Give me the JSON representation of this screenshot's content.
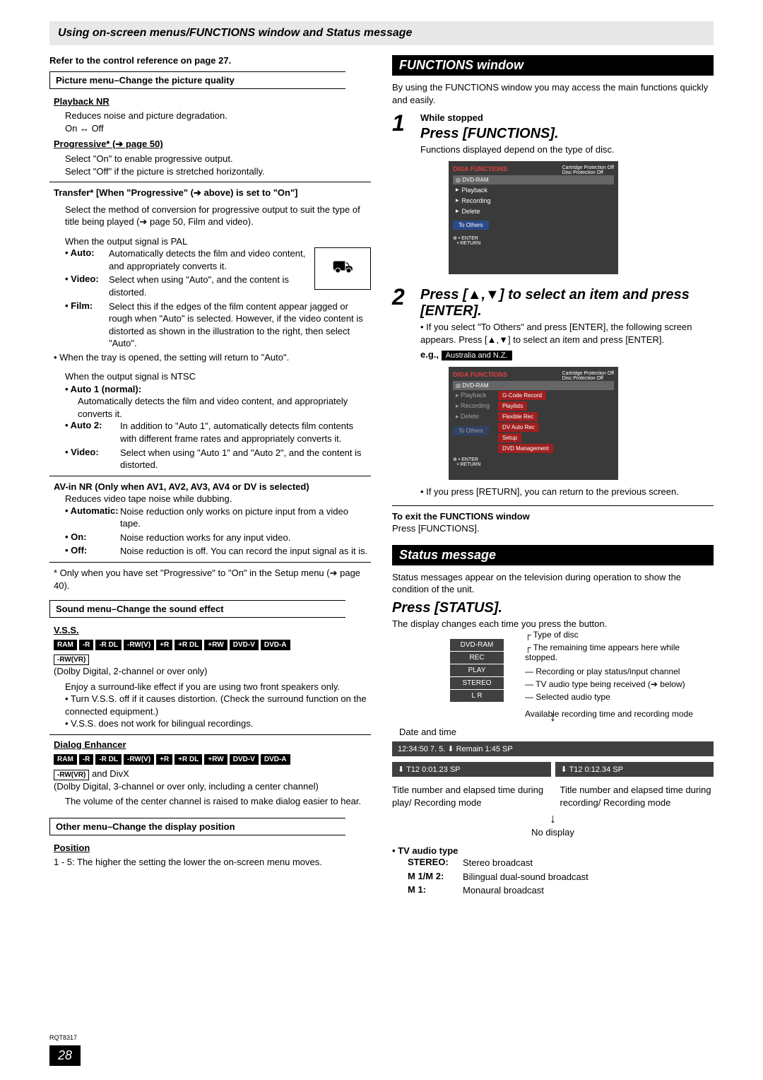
{
  "header": "Using on-screen menus/FUNCTIONS window and Status message",
  "ref_note": "Refer to the control reference on page 27.",
  "left": {
    "picture_bar": "Picture menu–Change the picture quality",
    "playback_nr": {
      "title": "Playback NR",
      "body": "Reduces noise and picture degradation.",
      "opts": "On ↔ Off"
    },
    "progressive": {
      "title": "Progressive* (➔ page 50)",
      "line1": "Select \"On\" to enable progressive output.",
      "line2": "Select \"Off\" if the picture is stretched horizontally."
    },
    "transfer": {
      "title": "Transfer* [When \"Progressive\" (➔ above) is set to \"On\"]",
      "body1": "Select the method of conversion for progressive output to suit the type of title being played (➔ page 50, Film and video).",
      "pal_title": "When the output signal is PAL",
      "auto": "Automatically detects the film and video content, and appropriately converts it.",
      "video": "Select when using \"Auto\", and the content is distorted.",
      "film": "Select this if the edges of the film content appear jagged or rough when \"Auto\" is selected. However, if the video content is distorted as shown in the illustration to the right, then select \"Auto\".",
      "tray": "• When the tray is opened, the setting will return to \"Auto\".",
      "ntsc_title": "When the output signal is NTSC",
      "auto1_label": "• Auto 1 (normal):",
      "auto1": "Automatically detects the film and video content, and appropriately converts it.",
      "auto2": "In addition to \"Auto 1\", automatically detects film contents with different frame rates and appropriately converts it.",
      "video2": "Select when using \"Auto 1\" and \"Auto 2\", and the content is distorted."
    },
    "avin": {
      "title": "AV-in NR (Only when AV1, AV2, AV3, AV4 or DV is selected)",
      "body": "Reduces video tape noise while dubbing.",
      "automatic": "Noise reduction only works on picture input from a video tape.",
      "on": "Noise reduction works for any input video.",
      "off": "Noise reduction is off. You can record the input signal as it is."
    },
    "footnote": "* Only when you have set \"Progressive\" to \"On\" in the Setup menu (➔ page 40).",
    "sound_bar": "Sound menu–Change the sound effect",
    "vss": {
      "title": "V.S.S.",
      "chips": [
        "RAM",
        "-R",
        "-R DL",
        "-RW(V)",
        "+R",
        "+R DL",
        "+RW",
        "DVD-V",
        "DVD-A"
      ],
      "chip_extra": "-RW(VR)",
      "note": "(Dolby Digital, 2-channel or over only)",
      "p1": "Enjoy a surround-like effect if you are using two front speakers only.",
      "b1": "• Turn V.S.S. off if it causes distortion. (Check the surround function on the connected equipment.)",
      "b2": "• V.S.S. does not work for bilingual recordings."
    },
    "dialog": {
      "title": "Dialog Enhancer",
      "chips": [
        "RAM",
        "-R",
        "-R DL",
        "-RW(V)",
        "+R",
        "+R DL",
        "+RW",
        "DVD-V",
        "DVD-A"
      ],
      "extra": "-RW(VR)  and DivX",
      "note": "(Dolby Digital, 3-channel or over only, including a center channel)",
      "p1": "The volume of the center channel is raised to make dialog easier to hear."
    },
    "other_bar": "Other menu–Change the display position",
    "position": {
      "title": "Position",
      "body": "1 - 5: The higher the setting the lower the on-screen menu moves."
    }
  },
  "right": {
    "func_bar": "FUNCTIONS window",
    "func_intro": "By using the FUNCTIONS window you may access the main functions quickly and easily.",
    "step1": {
      "while": "While stopped",
      "press": "Press [FUNCTIONS].",
      "sub": "Functions displayed depend on the type of disc.",
      "scr": {
        "brand": "DIGA  FUNCTIONS",
        "cartridge": "Cartridge Protection  Off",
        "discprot": "Disc Protection  Off",
        "dvdram": "◎ DVD-RAM",
        "items": [
          "Playback",
          "Recording",
          "Delete"
        ],
        "toothers": "To Others",
        "enter": "ENTER",
        "return": "RETURN"
      }
    },
    "step2": {
      "press": "Press [▲,▼] to select an item and press [ENTER].",
      "b1": "• If you select \"To Others\" and press [ENTER], the following screen appears. Press [▲,▼] to select an item and press [ENTER].",
      "eg": "e.g.,",
      "aus": "Australia and N.Z.",
      "scr": {
        "brand": "DIGA  FUNCTIONS",
        "cartridge": "Cartridge Protection  Off",
        "discprot": "Disc Protection  Off",
        "dvdram": "◎ DVD-RAM",
        "left_items": [
          "Playback",
          "Recording",
          "Delete"
        ],
        "toothers": "To Others",
        "right_items": [
          "G-Code Record",
          "Playlists",
          "Flexible Rec",
          "DV Auto Rec",
          "Setup",
          "DVD Management"
        ],
        "enter": "ENTER",
        "return": "RETURN"
      },
      "b2": "• If you press [RETURN], you can return to the previous screen.",
      "exit_title": "To exit the FUNCTIONS window",
      "exit_body": "Press [FUNCTIONS]."
    },
    "status_bar": "Status message",
    "status_intro": "Status messages appear on the television during operation to show the condition of the unit.",
    "press_status": "Press [STATUS].",
    "status_sub": "The display changes each time you press the button.",
    "diagram": {
      "boxes": [
        "DVD-RAM",
        "REC",
        "PLAY",
        "STEREO",
        "L R"
      ],
      "labels": {
        "type": "Type of disc",
        "remain": "The remaining time appears here while stopped.",
        "rec": "Recording or play status/input channel",
        "tv": "TV audio type being received (➔ below)",
        "audio": "Selected audio type",
        "avail": "Available recording time and recording mode",
        "datetime": "Date and time",
        "nodisplay": "No display"
      },
      "bar1": "12:34:50  7. 5.        ⬇ Remain   1:45  SP",
      "bar2_a": "⬇ T12  0:01.23  SP",
      "bar2_b": "⬇ T12   0:12.34  SP",
      "below_l": "Title number and elapsed time during play/ Recording mode",
      "below_r": "Title number and elapsed time during recording/ Recording mode"
    },
    "tvaudio": {
      "title": "• TV audio type",
      "stereo_l": "STEREO:",
      "stereo": "Stereo broadcast",
      "m12_l": "M 1/M 2:",
      "m12": "Bilingual dual-sound broadcast",
      "m1_l": "M 1:",
      "m1": "Monaural broadcast"
    }
  },
  "page_num": "28",
  "rqt": "RQT8317"
}
